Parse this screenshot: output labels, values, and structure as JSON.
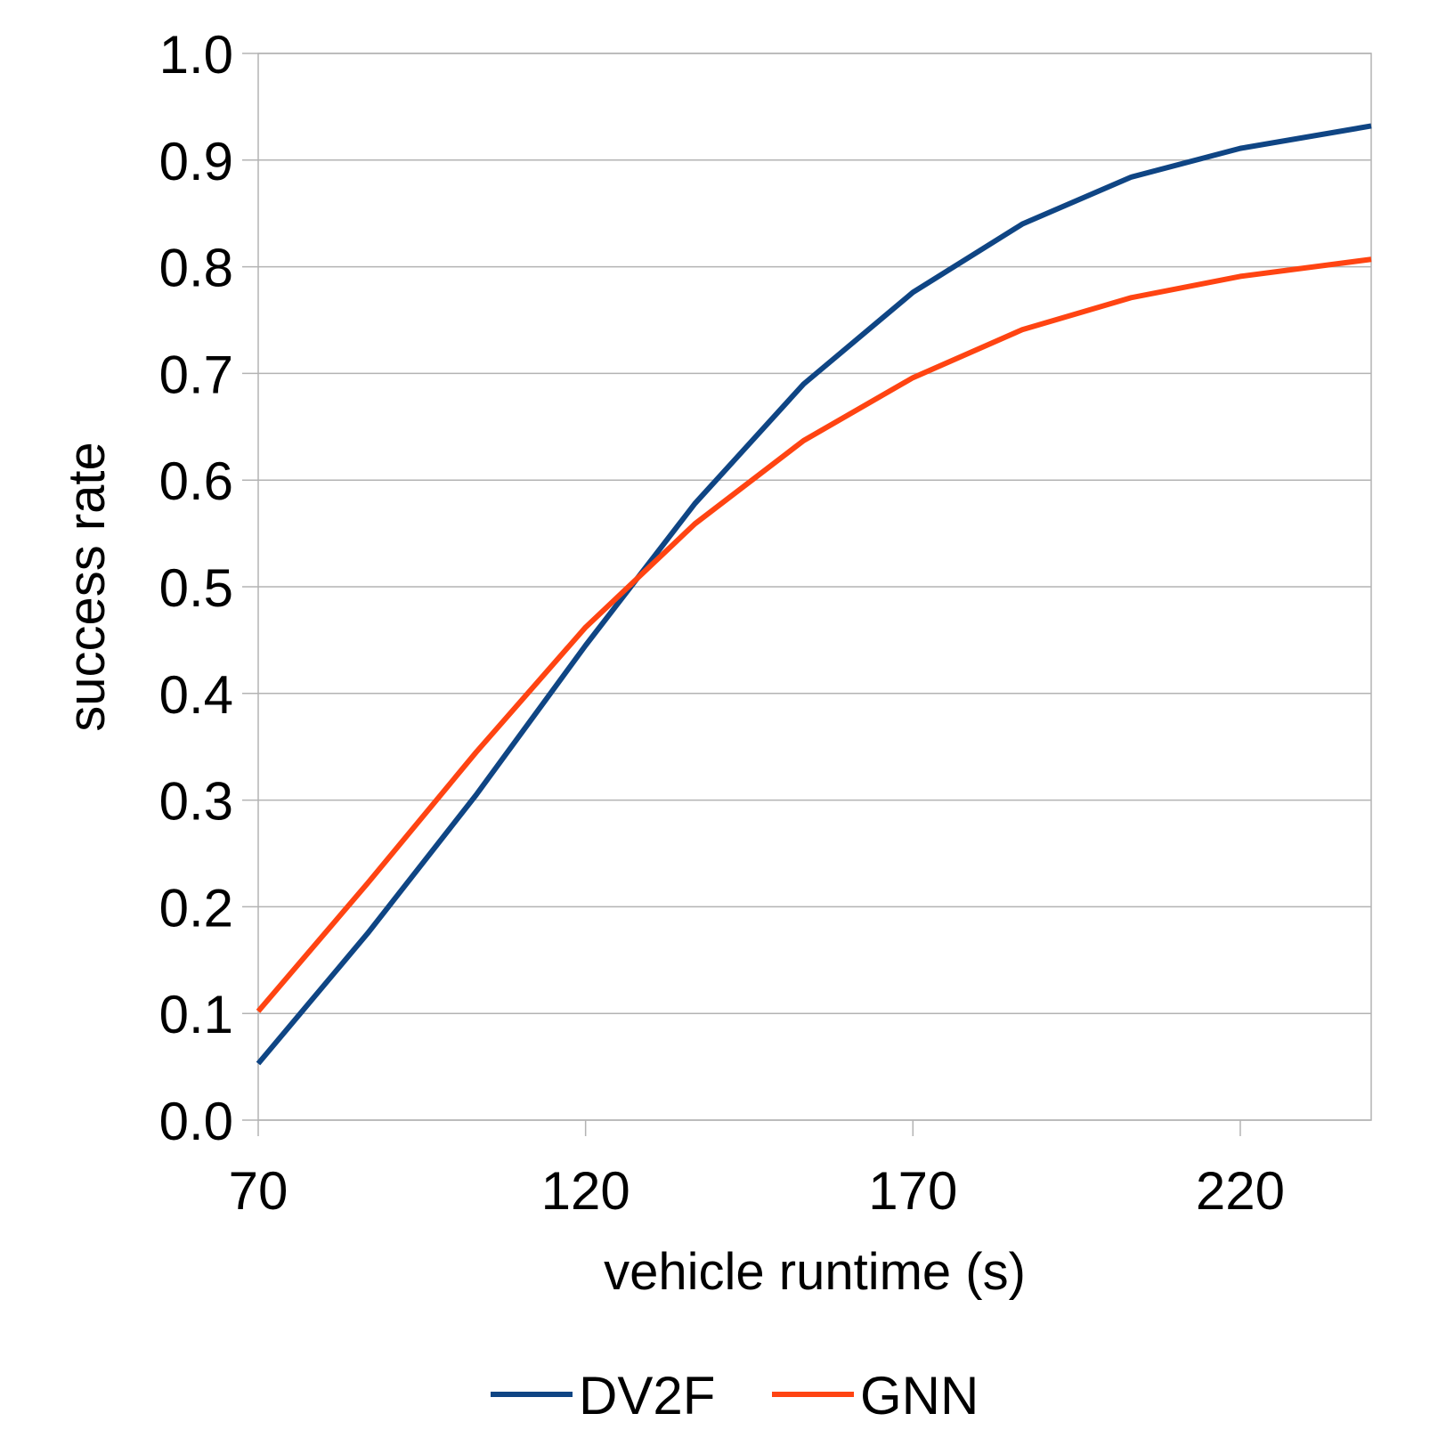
{
  "chart_data": {
    "type": "line",
    "title": "",
    "xlabel": "vehicle runtime (s)",
    "ylabel": "success rate",
    "xlim": [
      70,
      240
    ],
    "ylim": [
      0.0,
      1.0
    ],
    "x_ticks": [
      "70",
      "120",
      "170",
      "220"
    ],
    "y_ticks": [
      "0.0",
      "0.1",
      "0.2",
      "0.3",
      "0.4",
      "0.5",
      "0.6",
      "0.7",
      "0.8",
      "0.9",
      "1.0"
    ],
    "grid": "horizontal",
    "legend_position": "bottom",
    "x": [
      70,
      86.7,
      103.3,
      120,
      136.7,
      153.3,
      170,
      186.7,
      203.3,
      220,
      240
    ],
    "series": [
      {
        "name": "DV2F",
        "color": "#0f4584",
        "values": [
          0.053,
          0.175,
          0.305,
          0.445,
          0.578,
          0.69,
          0.776,
          0.84,
          0.884,
          0.911,
          0.932
        ]
      },
      {
        "name": "GNN",
        "color": "#ff4412",
        "values": [
          0.102,
          0.222,
          0.345,
          0.462,
          0.559,
          0.637,
          0.696,
          0.741,
          0.771,
          0.791,
          0.807
        ]
      }
    ]
  }
}
